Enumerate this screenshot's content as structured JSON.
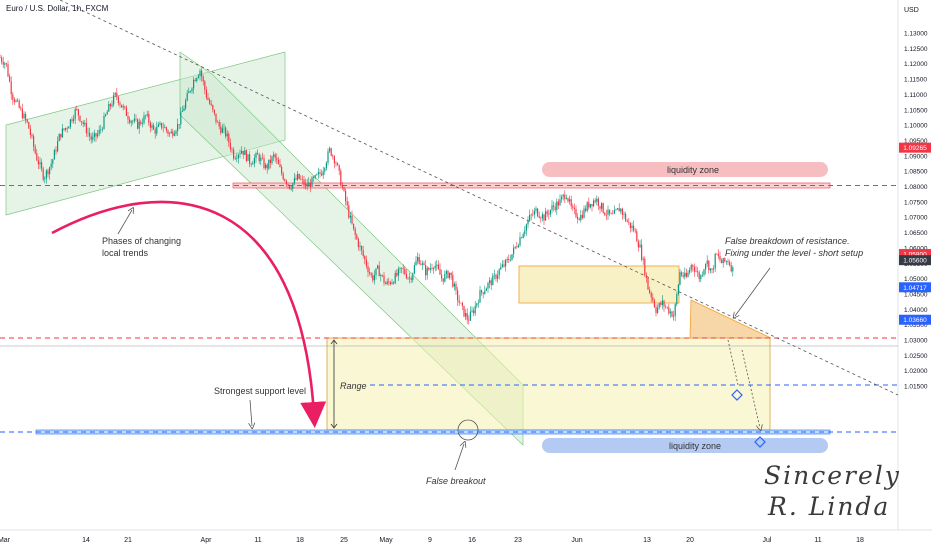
{
  "header": {
    "symbol": "Euro / U.S. Dollar, 1h, FXCM",
    "currency": "USD"
  },
  "annotations": {
    "liquidity_zone_top": "liquidity zone",
    "liquidity_zone_bottom": "liquidity zone",
    "phases_line1": "Phases of changing",
    "phases_line2": "local trends",
    "false_breakdown_line1": "False breakdown of resistance.",
    "false_breakdown_line2": "Fixing under the level - short setup",
    "range": "Range",
    "strongest_support": "Strongest support level",
    "false_breakout": "False breakout",
    "signature_line1": "Sincerely",
    "signature_line2": "R. Linda"
  },
  "colors": {
    "bull": "#089981",
    "bear": "#f23645",
    "resistance": "#f23645",
    "support": "#2962ff",
    "zone_green": "#c8e6c9",
    "zone_yellow": "#f5f0b0",
    "zone_orange": "#f0b760",
    "arrow": "#e91e63"
  },
  "chart_data": {
    "type": "candlestick",
    "title": "Euro / U.S. Dollar, 1h, FXCM",
    "y_axis_unit": "USD",
    "ylim": [
      1.0105,
      1.1355
    ],
    "y_ticks": [
      1.13,
      1.125,
      1.12,
      1.115,
      1.11,
      1.105,
      1.1,
      1.095,
      1.09,
      1.085,
      1.08,
      1.075,
      1.07,
      1.065,
      1.06,
      1.055,
      1.05,
      1.045,
      1.04,
      1.035,
      1.03,
      1.025,
      1.02,
      1.015
    ],
    "x_ticks": [
      "Mar",
      "14",
      "21",
      "Apr",
      "11",
      "18",
      "25",
      "May",
      "9",
      "16",
      "23",
      "Jun",
      "13",
      "20",
      "Jul",
      "11",
      "18"
    ],
    "price_labels": [
      {
        "value": 1.09265,
        "text": "1.09265",
        "color": "#f23645"
      },
      {
        "value": 1.058,
        "text": "1.05800",
        "color": "#f23645"
      },
      {
        "value": 1.056,
        "text": "1.05600",
        "color": "#363a45"
      },
      {
        "value": 1.04717,
        "text": "1.04717",
        "color": "#2962ff"
      },
      {
        "value": 1.0366,
        "text": "1.03660",
        "color": "#2962ff"
      }
    ],
    "price_path": [
      [
        0,
        1.122
      ],
      [
        6,
        1.12
      ],
      [
        12,
        1.11
      ],
      [
        20,
        1.105
      ],
      [
        28,
        1.1
      ],
      [
        36,
        1.09
      ],
      [
        44,
        1.083
      ],
      [
        52,
        1.088
      ],
      [
        60,
        1.097
      ],
      [
        68,
        1.1
      ],
      [
        76,
        1.105
      ],
      [
        84,
        1.1
      ],
      [
        92,
        1.095
      ],
      [
        100,
        1.098
      ],
      [
        108,
        1.105
      ],
      [
        116,
        1.11
      ],
      [
        122,
        1.106
      ],
      [
        130,
        1.102
      ],
      [
        138,
        1.1
      ],
      [
        146,
        1.103
      ],
      [
        154,
        1.098
      ],
      [
        162,
        1.1
      ],
      [
        170,
        1.097
      ],
      [
        178,
        1.1
      ],
      [
        186,
        1.108
      ],
      [
        194,
        1.115
      ],
      [
        200,
        1.118
      ],
      [
        206,
        1.11
      ],
      [
        212,
        1.105
      ],
      [
        218,
        1.1
      ],
      [
        226,
        1.097
      ],
      [
        234,
        1.09
      ],
      [
        242,
        1.092
      ],
      [
        250,
        1.088
      ],
      [
        258,
        1.09
      ],
      [
        266,
        1.086
      ],
      [
        274,
        1.09
      ],
      [
        282,
        1.084
      ],
      [
        290,
        1.08
      ],
      [
        298,
        1.083
      ],
      [
        306,
        1.08
      ],
      [
        314,
        1.082
      ],
      [
        322,
        1.085
      ],
      [
        330,
        1.092
      ],
      [
        336,
        1.088
      ],
      [
        342,
        1.08
      ],
      [
        348,
        1.072
      ],
      [
        354,
        1.065
      ],
      [
        360,
        1.06
      ],
      [
        366,
        1.055
      ],
      [
        372,
        1.05
      ],
      [
        378,
        1.053
      ],
      [
        386,
        1.048
      ],
      [
        394,
        1.05
      ],
      [
        402,
        1.053
      ],
      [
        410,
        1.05
      ],
      [
        418,
        1.057
      ],
      [
        426,
        1.052
      ],
      [
        434,
        1.055
      ],
      [
        442,
        1.05
      ],
      [
        450,
        1.052
      ],
      [
        456,
        1.045
      ],
      [
        462,
        1.04
      ],
      [
        468,
        1.0366
      ],
      [
        474,
        1.04
      ],
      [
        480,
        1.045
      ],
      [
        488,
        1.048
      ],
      [
        494,
        1.05
      ],
      [
        500,
        1.053
      ],
      [
        506,
        1.055
      ],
      [
        512,
        1.058
      ],
      [
        518,
        1.062
      ],
      [
        524,
        1.066
      ],
      [
        530,
        1.07
      ],
      [
        536,
        1.072
      ],
      [
        544,
        1.07
      ],
      [
        552,
        1.073
      ],
      [
        560,
        1.075
      ],
      [
        566,
        1.078
      ],
      [
        572,
        1.072
      ],
      [
        580,
        1.07
      ],
      [
        588,
        1.074
      ],
      [
        596,
        1.076
      ],
      [
        604,
        1.072
      ],
      [
        612,
        1.07
      ],
      [
        620,
        1.073
      ],
      [
        628,
        1.068
      ],
      [
        634,
        1.066
      ],
      [
        640,
        1.06
      ],
      [
        644,
        1.054
      ],
      [
        648,
        1.047
      ],
      [
        652,
        1.044
      ],
      [
        656,
        1.04
      ],
      [
        662,
        1.042
      ],
      [
        668,
        1.04
      ],
      [
        674,
        1.038
      ],
      [
        680,
        1.052
      ],
      [
        686,
        1.05
      ],
      [
        692,
        1.055
      ],
      [
        700,
        1.05
      ],
      [
        706,
        1.056
      ],
      [
        712,
        1.052
      ],
      [
        716,
        1.058
      ],
      [
        722,
        1.055
      ],
      [
        728,
        1.056
      ],
      [
        734,
        1.052
      ]
    ]
  }
}
